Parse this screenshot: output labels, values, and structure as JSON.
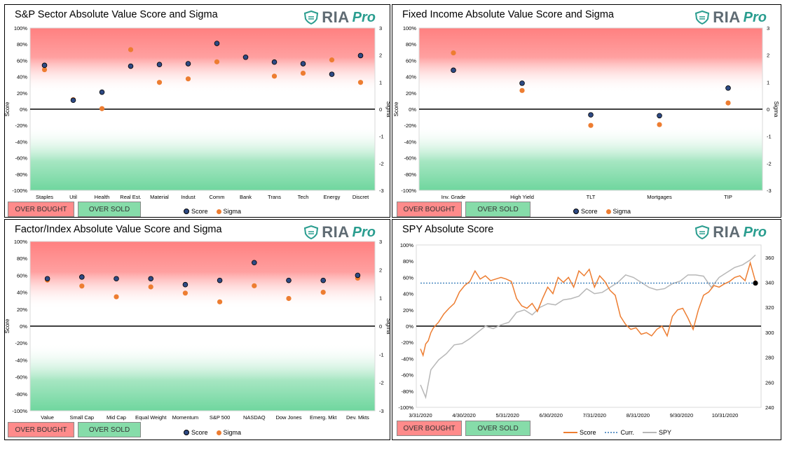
{
  "colors": {
    "score": "#2e4a84",
    "sigma": "#ed7d31",
    "spy": "#b7b7b7",
    "curr": "#2e75b6",
    "overbought": "#ff8b8b",
    "oversold": "#86dca9",
    "brand": "#2a9d8f"
  },
  "brand": {
    "ria": "RIA",
    "pro": "Pro"
  },
  "buttons": {
    "overbought": "OVER BOUGHT",
    "oversold": "OVER SOLD"
  },
  "legend": {
    "score": "Score",
    "sigma": "Sigma",
    "curr": "Curr.",
    "spy": "SPY"
  },
  "panels": [
    {
      "title": "S&P Sector Absolute Value Score and Sigma"
    },
    {
      "title": "Fixed Income Absolute Value Score and Sigma"
    },
    {
      "title": "Factor/Index Absolute Value Score and Sigma"
    },
    {
      "title": "SPY Absolute Score"
    }
  ],
  "chart_data": [
    {
      "type": "scatter",
      "title": "S&P Sector Absolute Value Score and Sigma",
      "ylabel": "Score",
      "y2label": "Sigma",
      "ylim": [
        -100,
        100
      ],
      "y2lim": [
        -3,
        3
      ],
      "categories": [
        "Staples",
        "Util",
        "Health",
        "Real Est.",
        "Material",
        "Indust",
        "Comm",
        "Bank",
        "Trans",
        "Tech",
        "Energy",
        "Discret"
      ],
      "series": [
        {
          "name": "Score",
          "values": [
            54,
            11,
            21,
            53,
            55,
            56,
            81,
            64,
            58,
            56,
            43,
            66
          ]
        },
        {
          "name": "Sigma",
          "values": [
            1.46,
            0.35,
            0.02,
            2.2,
            0.99,
            1.12,
            1.75,
            1.92,
            1.22,
            1.33,
            1.82,
            0.99
          ]
        }
      ]
    },
    {
      "type": "scatter",
      "title": "Fixed Income Absolute Value Score and Sigma",
      "ylabel": "Score",
      "y2label": "Sigma",
      "ylim": [
        -100,
        100
      ],
      "y2lim": [
        -3,
        3
      ],
      "categories": [
        "Inv. Grade",
        "High Yield",
        "TLT",
        "Mortgages",
        "TIP"
      ],
      "series": [
        {
          "name": "Score",
          "values": [
            48,
            32,
            -7,
            -8,
            26
          ]
        },
        {
          "name": "Sigma",
          "values": [
            2.08,
            0.69,
            -0.6,
            -0.57,
            0.23
          ]
        }
      ]
    },
    {
      "type": "scatter",
      "title": "Factor/Index Absolute Value Score and Sigma",
      "ylabel": "Score",
      "y2label": "Sigma",
      "ylim": [
        -100,
        100
      ],
      "y2lim": [
        -3,
        3
      ],
      "categories": [
        "Value",
        "Small Cap",
        "Mid Cap",
        "Equal Weight",
        "Momentum",
        "S&P 500",
        "NASDAQ",
        "Dow Jones",
        "Emerg. Mkt",
        "Dev. Mkts"
      ],
      "series": [
        {
          "name": "Score",
          "values": [
            56,
            58,
            56,
            56,
            49,
            54,
            75,
            54,
            54,
            60
          ]
        },
        {
          "name": "Sigma",
          "values": [
            1.63,
            1.42,
            1.04,
            1.39,
            1.17,
            0.86,
            1.43,
            0.98,
            1.2,
            1.7
          ]
        }
      ]
    },
    {
      "type": "line",
      "title": "SPY Absolute Score",
      "ylim": [
        -100,
        100
      ],
      "y2lim": [
        240,
        370
      ],
      "xticks": [
        "3/31/2020",
        "4/30/2020",
        "5/31/2020",
        "6/30/2020",
        "7/31/2020",
        "8/31/2020",
        "9/30/2020",
        "10/31/2020"
      ],
      "series": [
        {
          "name": "Score",
          "axis": "left",
          "x": [
            0,
            2,
            4,
            6,
            8,
            10,
            14,
            18,
            22,
            26,
            30,
            34,
            38,
            42,
            46,
            50,
            54,
            58,
            62,
            66,
            70,
            74,
            78,
            82,
            86,
            90,
            94,
            98,
            102,
            106,
            110,
            114,
            118,
            122,
            126,
            130,
            134,
            138,
            142,
            146,
            150,
            154,
            158,
            162,
            166,
            170,
            174,
            178,
            182,
            186,
            190,
            194,
            198,
            202,
            206,
            210,
            214,
            218,
            222,
            226,
            230,
            234,
            238,
            242,
            246,
            250,
            254,
            258
          ],
          "values": [
            -28,
            -36,
            -22,
            -18,
            -8,
            -2,
            5,
            15,
            22,
            28,
            42,
            50,
            55,
            68,
            58,
            62,
            56,
            58,
            60,
            58,
            55,
            34,
            25,
            22,
            28,
            18,
            34,
            48,
            40,
            60,
            54,
            60,
            48,
            68,
            62,
            70,
            48,
            62,
            55,
            44,
            38,
            12,
            2,
            -4,
            -2,
            -10,
            -8,
            -12,
            -4,
            0,
            -12,
            12,
            20,
            22,
            10,
            -4,
            20,
            38,
            42,
            50,
            48,
            52,
            55,
            60,
            62,
            56,
            78,
            55
          ]
        },
        {
          "name": "Curr.",
          "axis": "left",
          "x": [
            0,
            258
          ],
          "values": [
            53,
            53
          ]
        },
        {
          "name": "SPY",
          "axis": "right",
          "x": [
            0,
            4,
            8,
            14,
            20,
            26,
            32,
            38,
            44,
            50,
            56,
            62,
            68,
            74,
            80,
            86,
            92,
            98,
            104,
            110,
            116,
            122,
            128,
            134,
            140,
            146,
            152,
            158,
            164,
            170,
            176,
            182,
            188,
            194,
            200,
            206,
            212,
            218,
            224,
            230,
            236,
            242,
            248,
            254,
            258
          ],
          "values": [
            258,
            248,
            270,
            278,
            283,
            290,
            291,
            295,
            300,
            305,
            303,
            306,
            308,
            316,
            318,
            314,
            320,
            323,
            322,
            326,
            327,
            329,
            335,
            331,
            332,
            336,
            340,
            346,
            344,
            340,
            336,
            334,
            335,
            339,
            341,
            346,
            346,
            345,
            336,
            344,
            348,
            352,
            354,
            358,
            362
          ]
        }
      ]
    }
  ]
}
